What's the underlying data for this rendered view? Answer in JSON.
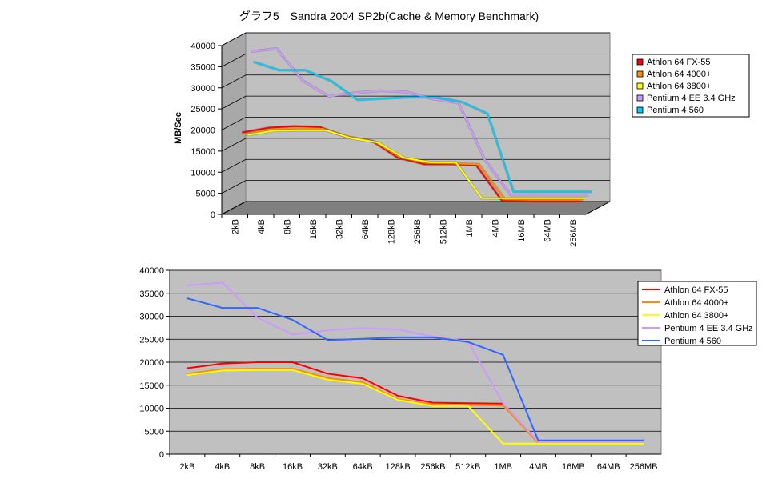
{
  "title": "グラフ5　Sandra 2004 SP2b(Cache & Memory Benchmark)",
  "chart_data": [
    {
      "type": "line",
      "variant": "3d",
      "title": "グラフ5　Sandra 2004 SP2b(Cache & Memory Benchmark)",
      "ylabel": "MB/Sec",
      "xlabel": "",
      "ylim": [
        0,
        40000
      ],
      "yticks": [
        "0",
        "5000",
        "10000",
        "15000",
        "20000",
        "25000",
        "30000",
        "35000",
        "40000"
      ],
      "categories": [
        "2kB",
        "4kB",
        "8kB",
        "16kB",
        "32kB",
        "64kB",
        "128kB",
        "256kB",
        "512kB",
        "1MB",
        "4MB",
        "16MB",
        "64MB",
        "256MB"
      ],
      "grid": true,
      "legend_position": "right",
      "series": [
        {
          "name": "Athlon 64 FX-55",
          "color": "#ff0000",
          "values": [
            18500,
            19600,
            20000,
            19800,
            17500,
            16500,
            12500,
            11000,
            11000,
            10800,
            2300,
            2200,
            2200,
            2200
          ]
        },
        {
          "name": "Athlon 64 4000+",
          "color": "#ff8c00",
          "values": [
            17600,
            18900,
            19200,
            19000,
            17100,
            15900,
            12200,
            10900,
            10800,
            10600,
            2300,
            2200,
            2200,
            2200
          ]
        },
        {
          "name": "Athlon 64 3800+",
          "color": "#ffff00",
          "values": [
            17200,
            18200,
            18300,
            18300,
            16400,
            15400,
            11800,
            10700,
            10700,
            2200,
            2200,
            2200,
            2200,
            2200
          ]
        },
        {
          "name": "Pentium 4 EE 3.4 GHz",
          "color": "#cc99ff",
          "values": [
            36600,
            37300,
            29700,
            26000,
            26800,
            27300,
            27000,
            25400,
            24400,
            11000,
            2600,
            2600,
            2600,
            2600
          ]
        },
        {
          "name": "Pentium 4 560",
          "color": "#00ccff",
          "values": [
            33800,
            31800,
            31800,
            29200,
            24800,
            25100,
            25400,
            25400,
            24300,
            21500,
            3000,
            3000,
            3000,
            3000
          ]
        }
      ]
    },
    {
      "type": "line",
      "title": "",
      "xlabel": "",
      "ylabel": "",
      "ylim": [
        0,
        40000
      ],
      "yticks": [
        "0",
        "5000",
        "10000",
        "15000",
        "20000",
        "25000",
        "30000",
        "35000",
        "40000"
      ],
      "categories": [
        "2kB",
        "4kB",
        "8kB",
        "16kB",
        "32kB",
        "64kB",
        "128kB",
        "256kB",
        "512kB",
        "1MB",
        "4MB",
        "16MB",
        "64MB",
        "256MB"
      ],
      "grid": true,
      "legend_position": "right",
      "series": [
        {
          "name": "Athlon 64 FX-55",
          "color": "#ff0000",
          "values": [
            18700,
            19700,
            20000,
            20000,
            17500,
            16500,
            12700,
            11200,
            11100,
            11000,
            2500,
            2500,
            2500,
            2500
          ]
        },
        {
          "name": "Athlon 64 4000+",
          "color": "#ff8c00",
          "values": [
            17500,
            18500,
            18600,
            18600,
            16600,
            15600,
            12000,
            10800,
            10700,
            10600,
            2400,
            2400,
            2400,
            2400
          ]
        },
        {
          "name": "Athlon 64 3800+",
          "color": "#ffff00",
          "values": [
            17200,
            18200,
            18300,
            18300,
            16200,
            15300,
            11800,
            10500,
            10500,
            2300,
            2300,
            2300,
            2300,
            2300
          ]
        },
        {
          "name": "Pentium 4 EE 3.4 GHz",
          "color": "#cc99ff",
          "values": [
            36700,
            37300,
            29700,
            26000,
            26900,
            27400,
            27100,
            25600,
            24500,
            11100,
            2700,
            2700,
            2700,
            2700
          ]
        },
        {
          "name": "Pentium 4 560",
          "color": "#3366ff",
          "values": [
            33900,
            31800,
            31800,
            29200,
            24800,
            25100,
            25400,
            25400,
            24400,
            21600,
            3000,
            3000,
            3000,
            3000
          ]
        }
      ]
    }
  ]
}
